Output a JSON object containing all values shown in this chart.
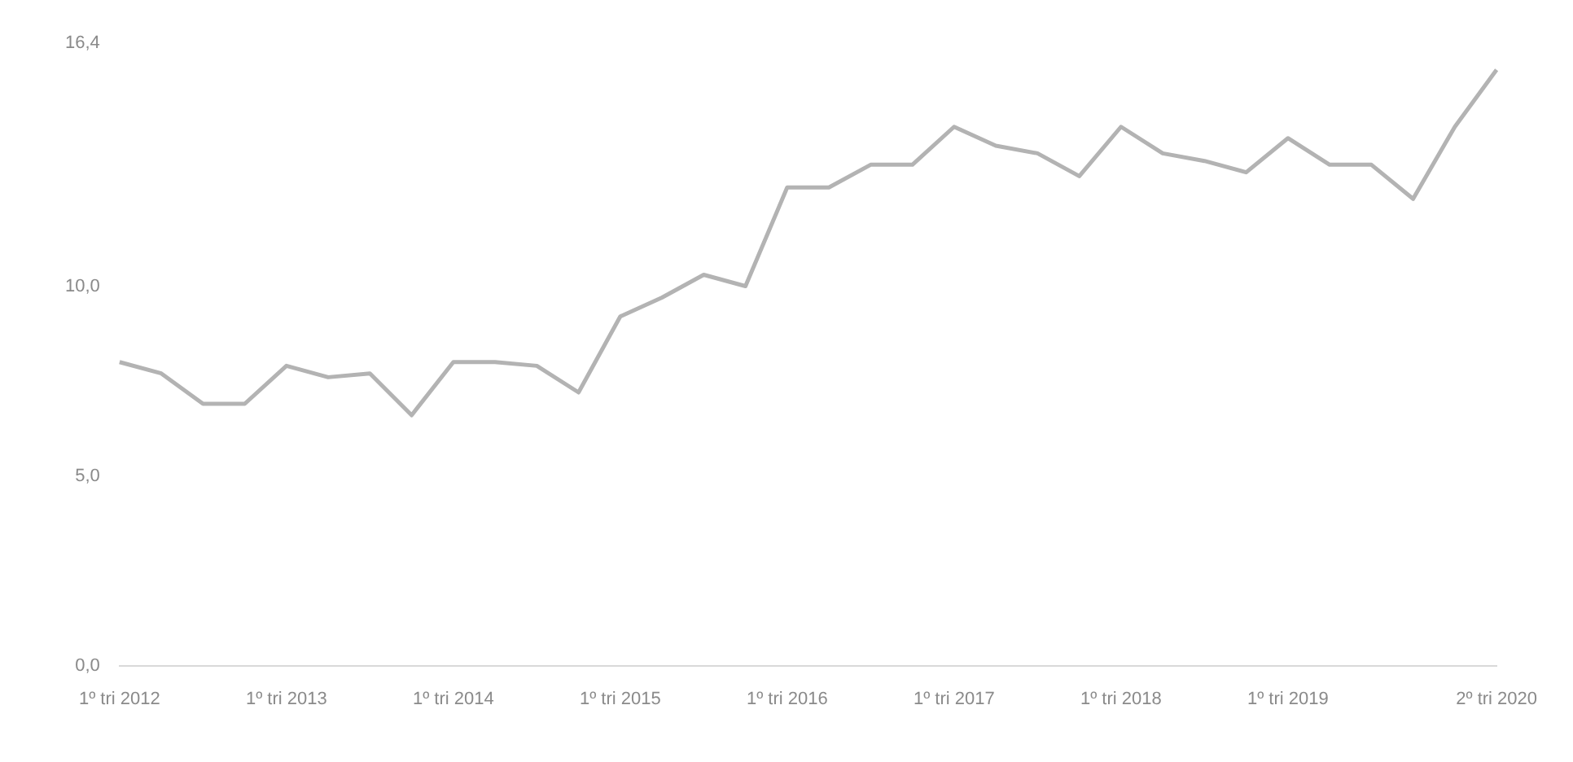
{
  "chart_data": {
    "type": "line",
    "categories": [
      "1º tri 2012",
      null,
      null,
      null,
      "1º tri 2013",
      null,
      null,
      null,
      "1º tri 2014",
      null,
      null,
      null,
      "1º tri 2015",
      null,
      null,
      null,
      "1º tri 2016",
      null,
      null,
      null,
      "1º tri 2017",
      null,
      null,
      null,
      "1º tri 2018",
      null,
      null,
      null,
      "1º tri 2019",
      null,
      null,
      null,
      null,
      "2º tri 2020"
    ],
    "series": [
      {
        "color": "#b3b3b3",
        "values": [
          8.0,
          7.7,
          6.9,
          6.9,
          7.9,
          7.6,
          7.7,
          6.6,
          8.0,
          8.0,
          7.9,
          7.2,
          9.2,
          9.7,
          10.3,
          10.0,
          12.6,
          12.6,
          13.2,
          13.2,
          14.2,
          13.7,
          13.5,
          12.9,
          14.2,
          13.5,
          13.3,
          13.0,
          13.9,
          13.2,
          13.2,
          12.3,
          14.2,
          15.7
        ]
      }
    ],
    "ylim": [
      0,
      16.4
    ],
    "yticks": [
      {
        "value": 0,
        "label": "0,0"
      },
      {
        "value": 5,
        "label": "5,0"
      },
      {
        "value": 10,
        "label": "10,0"
      },
      {
        "value": 16.4,
        "label": "16,4"
      }
    ],
    "grid": false,
    "legend": false,
    "marker": "none",
    "line_style": "solid"
  }
}
